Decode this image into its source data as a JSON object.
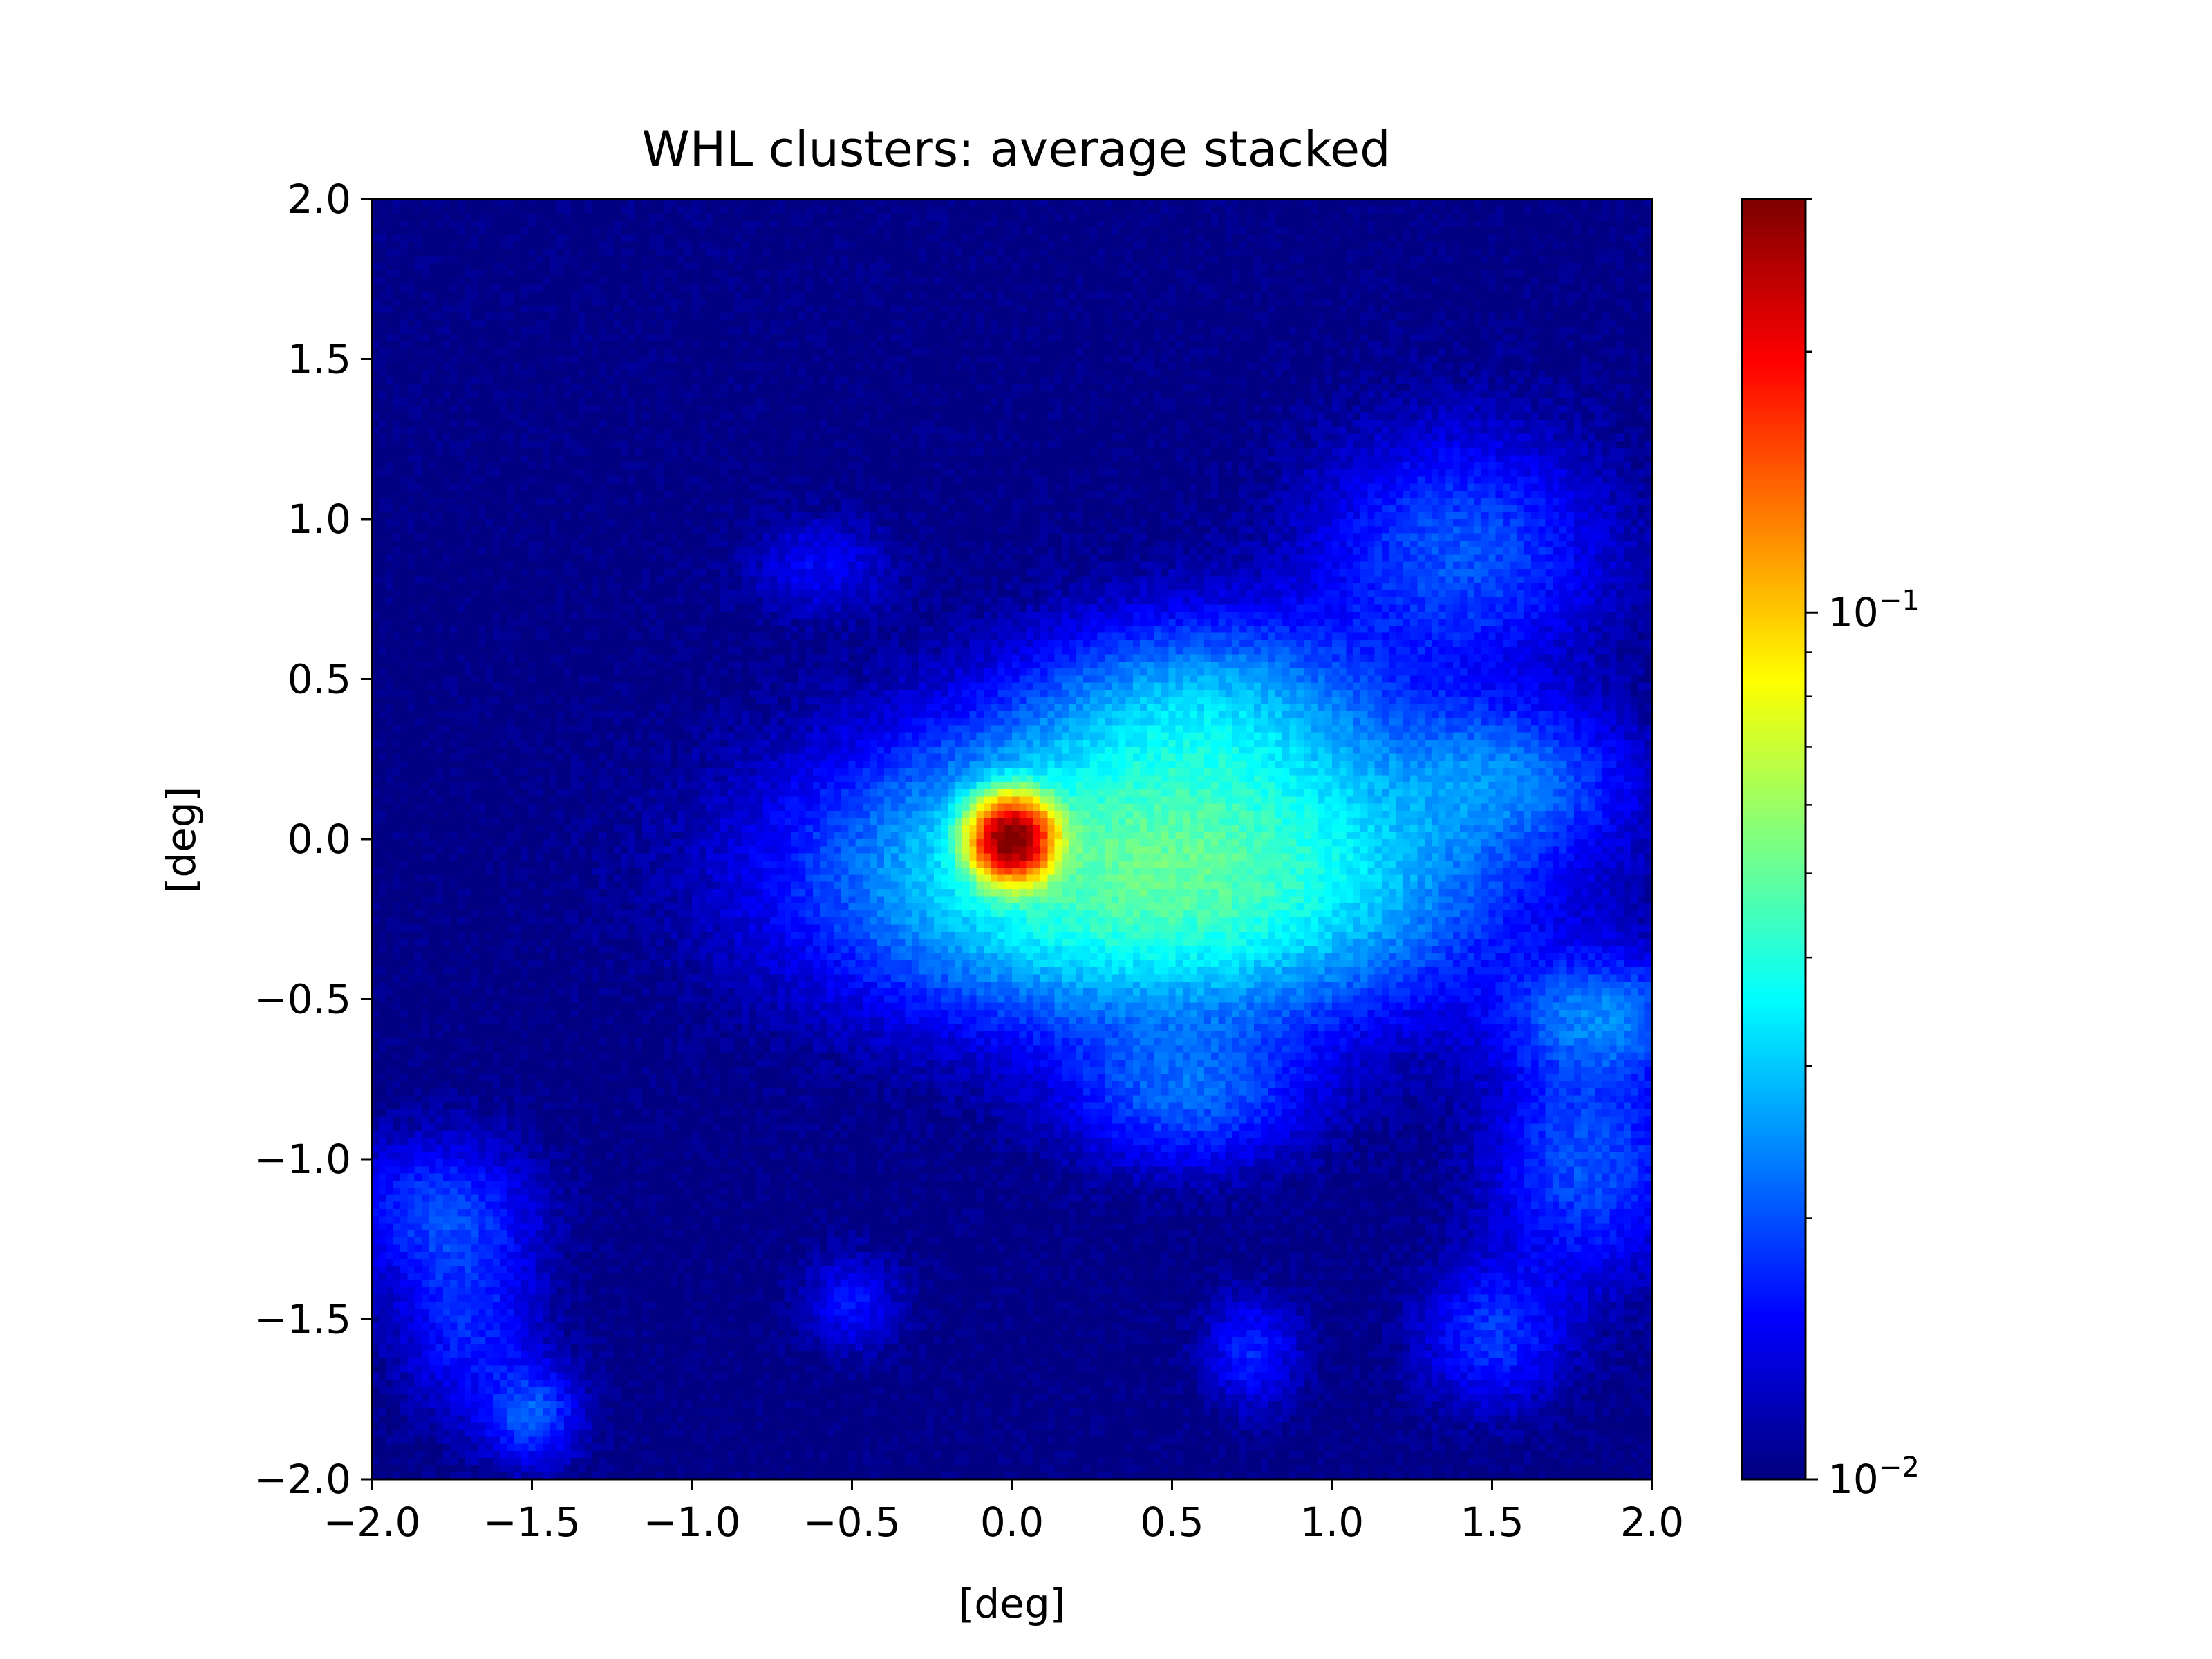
{
  "chart_data": {
    "type": "heatmap",
    "title": "WHL clusters: average stacked",
    "xlabel": "[deg]",
    "ylabel": "[deg]",
    "xlim": [
      -2.0,
      2.0
    ],
    "ylim": [
      -2.0,
      2.0
    ],
    "x_ticks": [
      "−2.0",
      "−1.5",
      "−1.0",
      "−0.5",
      "0.0",
      "0.5",
      "1.0",
      "1.5",
      "2.0"
    ],
    "y_ticks": [
      "2.0",
      "1.5",
      "1.0",
      "0.5",
      "0.0",
      "−0.5",
      "−1.0",
      "−1.5",
      "−2.0"
    ],
    "x_tick_values": [
      -2.0,
      -1.5,
      -1.0,
      -0.5,
      0.0,
      0.5,
      1.0,
      1.5,
      2.0
    ],
    "y_tick_values": [
      2.0,
      1.5,
      1.0,
      0.5,
      0.0,
      -0.5,
      -1.0,
      -1.5,
      -2.0
    ],
    "colormap": "jet",
    "colorbar": {
      "scale": "log",
      "range": [
        0.01,
        0.3
      ],
      "major_ticks": [
        {
          "value": 0.1,
          "base": "10",
          "exp": "−1"
        },
        {
          "value": 0.01,
          "base": "10",
          "exp": "−2"
        }
      ],
      "minor_ticks": [
        0.02,
        0.03,
        0.04,
        0.05,
        0.06,
        0.07,
        0.08,
        0.09,
        0.2,
        0.3
      ]
    },
    "peak": {
      "x": 0.0,
      "y": 0.0,
      "value": 0.3
    },
    "features": [
      {
        "x": 0.0,
        "y": 0.0,
        "sx": 0.075,
        "sy": 0.075,
        "value": 0.3
      },
      {
        "x": 0.45,
        "y": -0.1,
        "sx": 0.6,
        "sy": 0.28,
        "value": 0.05
      },
      {
        "x": 0.6,
        "y": 0.4,
        "sx": 0.35,
        "sy": 0.2,
        "value": 0.025
      },
      {
        "x": 1.4,
        "y": 0.9,
        "sx": 0.3,
        "sy": 0.25,
        "value": 0.02
      },
      {
        "x": 1.55,
        "y": 0.2,
        "sx": 0.25,
        "sy": 0.15,
        "value": 0.02
      },
      {
        "x": 1.85,
        "y": -0.55,
        "sx": 0.2,
        "sy": 0.12,
        "value": 0.022
      },
      {
        "x": 1.8,
        "y": -1.0,
        "sx": 0.2,
        "sy": 0.25,
        "value": 0.02
      },
      {
        "x": 1.5,
        "y": -1.55,
        "sx": 0.15,
        "sy": 0.15,
        "value": 0.018
      },
      {
        "x": 0.55,
        "y": -0.8,
        "sx": 0.25,
        "sy": 0.15,
        "value": 0.02
      },
      {
        "x": -1.8,
        "y": -1.15,
        "sx": 0.2,
        "sy": 0.15,
        "value": 0.018
      },
      {
        "x": -1.7,
        "y": -1.5,
        "sx": 0.15,
        "sy": 0.2,
        "value": 0.017
      },
      {
        "x": -1.5,
        "y": -1.8,
        "sx": 0.1,
        "sy": 0.1,
        "value": 0.02
      },
      {
        "x": -0.6,
        "y": 0.85,
        "sx": 0.15,
        "sy": 0.1,
        "value": 0.015
      },
      {
        "x": 0.75,
        "y": -1.6,
        "sx": 0.1,
        "sy": 0.12,
        "value": 0.017
      },
      {
        "x": -0.5,
        "y": -1.45,
        "sx": 0.1,
        "sy": 0.1,
        "value": 0.016
      }
    ]
  }
}
